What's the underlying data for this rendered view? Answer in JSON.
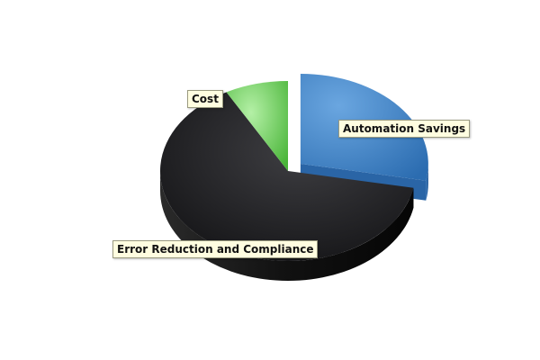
{
  "chart_data": {
    "type": "pie",
    "style": "3d-exploded",
    "slices": [
      {
        "label": "Automation Savings",
        "value": 28,
        "color": "#3a7fc4",
        "exploded": true
      },
      {
        "label": "Error Reduction and Compliance",
        "value": 64,
        "color": "#1c1c1c",
        "exploded": false
      },
      {
        "label": "Cost",
        "value": 8,
        "color": "#5fcb4b",
        "exploded": false
      }
    ],
    "legend": "none"
  }
}
